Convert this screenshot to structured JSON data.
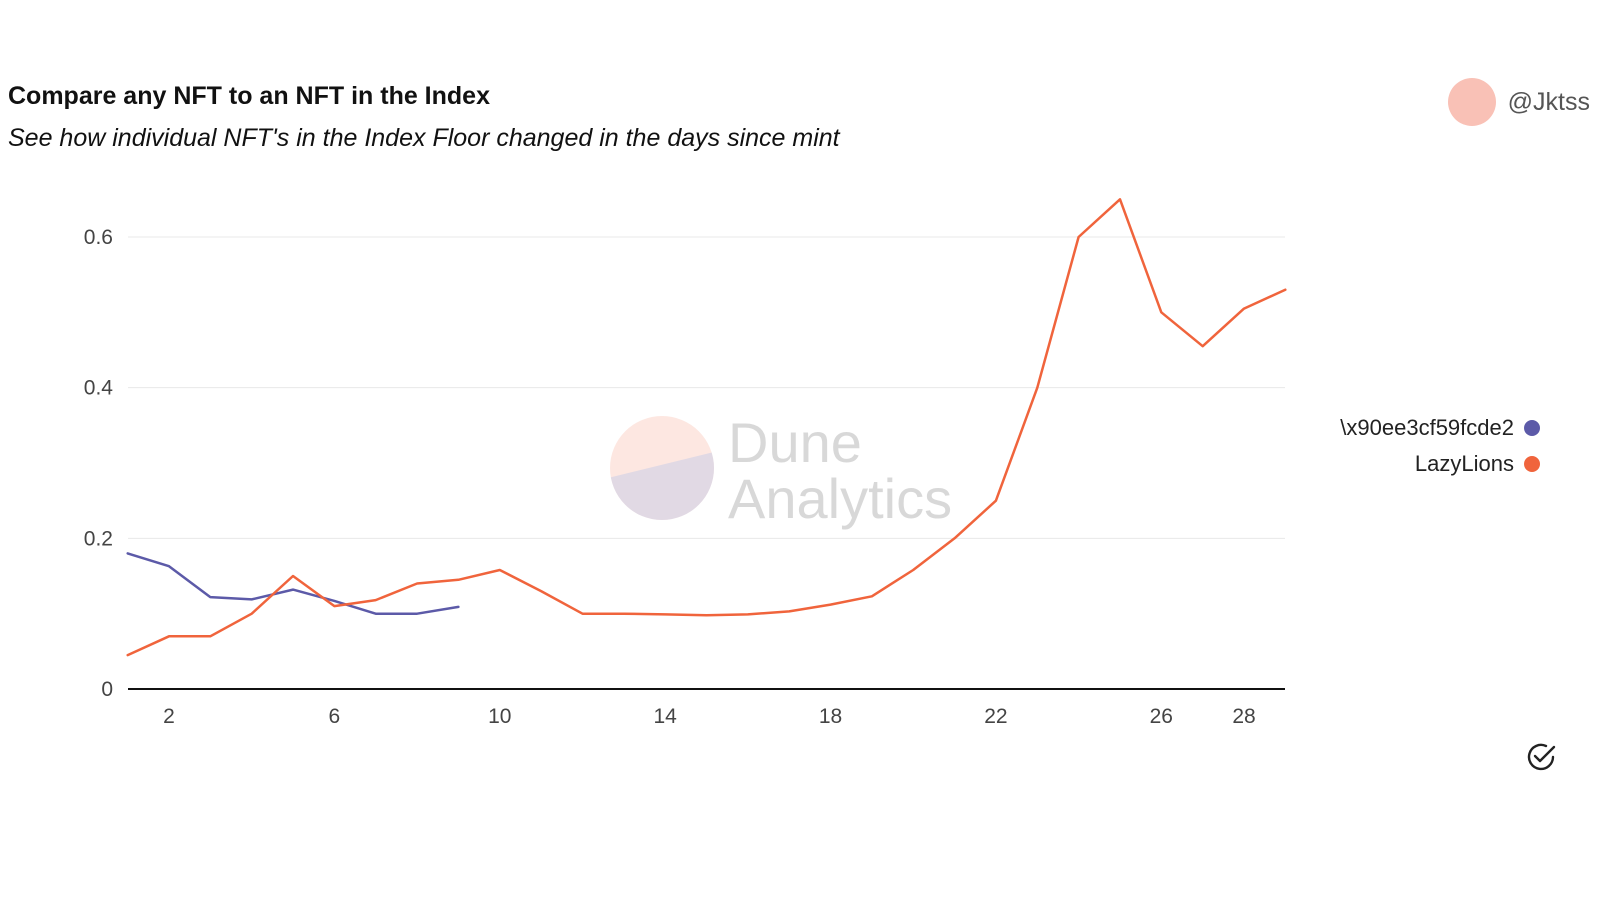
{
  "header": {
    "title": "Compare any NFT to an NFT in the Index",
    "subtitle": "See how individual NFT's in the Index Floor changed in the days since mint",
    "author": "@Jktss"
  },
  "watermark": {
    "line1": "Dune",
    "line2": "Analytics"
  },
  "icons": {
    "verified": "check-circle-icon"
  },
  "colors": {
    "series_1": "#5c5aa8",
    "series_2": "#f0643c",
    "avatar": "#f9c1b6"
  },
  "chart_data": {
    "type": "line",
    "title": "Compare any NFT to an NFT in the Index",
    "subtitle": "See how individual NFT's in the Index Floor changed in the days since mint",
    "xlabel": "",
    "ylabel": "",
    "xlim": [
      1,
      29
    ],
    "ylim": [
      0,
      0.65
    ],
    "x_ticks": [
      2,
      6,
      10,
      14,
      18,
      22,
      26,
      28
    ],
    "y_ticks": [
      0,
      0.2,
      0.4,
      0.6
    ],
    "y_tick_labels": [
      "0",
      "0.2",
      "0.4",
      "0.6"
    ],
    "grid": true,
    "legend_position": "right",
    "series": [
      {
        "name": "\\x90ee3cf59fcde2",
        "color": "#5c5aa8",
        "x": [
          1,
          2,
          3,
          4,
          5,
          6,
          7,
          8,
          9
        ],
        "y": [
          0.18,
          0.163,
          0.122,
          0.119,
          0.132,
          0.117,
          0.1,
          0.1,
          0.109
        ]
      },
      {
        "name": "LazyLions",
        "color": "#f0643c",
        "x": [
          1,
          2,
          3,
          4,
          5,
          6,
          7,
          8,
          9,
          10,
          11,
          12,
          13,
          14,
          15,
          16,
          17,
          18,
          19,
          20,
          21,
          22,
          23,
          24,
          25,
          26,
          27,
          28,
          29
        ],
        "y": [
          0.045,
          0.07,
          0.07,
          0.1,
          0.15,
          0.11,
          0.118,
          0.14,
          0.145,
          0.158,
          0.13,
          0.1,
          0.1,
          0.099,
          0.098,
          0.099,
          0.103,
          0.112,
          0.123,
          0.158,
          0.2,
          0.25,
          0.4,
          0.6,
          0.65,
          0.5,
          0.455,
          0.505,
          0.53
        ]
      }
    ]
  }
}
